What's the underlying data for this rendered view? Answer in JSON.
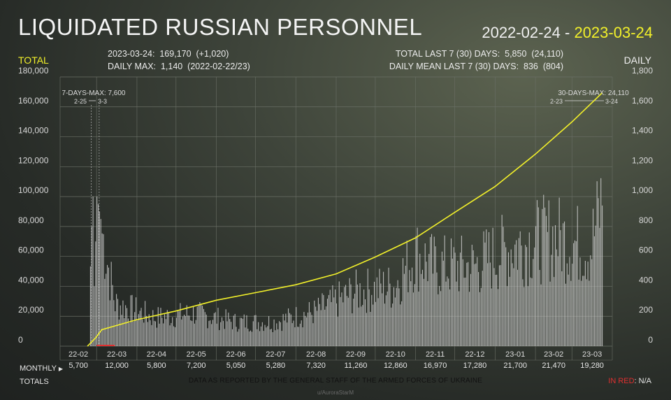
{
  "header": {
    "title": "LIQUIDATED RUSSIAN PERSONNEL",
    "date_start": "2022-02-24",
    "date_sep": " - ",
    "date_end": "2023-03-24",
    "total_label": "TOTAL",
    "daily_label": "DAILY"
  },
  "stats": {
    "left_line1": "2023-03-24:  169,170  (+1,020)",
    "left_line2": "DAILY MAX:  1,140  (2022-02-22/23)",
    "right_line1": "TOTAL LAST 7 (30) DAYS:  5,850  (24,110)",
    "right_line2": "DAILY MEAN LAST 7 (30) DAYS:  836  (804)"
  },
  "annotations": {
    "max7_label": "7-DAYS-MAX: 7,600",
    "max7_from": "2-25",
    "max7_to": "3-3",
    "max30_label": "30-DAYS-MAX: 24,110",
    "max30_from": "2-23",
    "max30_to": "3-24"
  },
  "footer": {
    "monthly_label": "MONTHLY",
    "totals_label": "TOTALS",
    "source": "DATA AS REPORTED BY THE GENERAL STAFF OF THE ARMED FORCES OF UKRAINE",
    "credit": "u/AuroraStarM",
    "pct_key": "IN RED",
    "pct_value": ": N/A"
  },
  "colors": {
    "cumulative_line": "#f2f02a",
    "bars": "#d4d4d4",
    "gridlines": "#6a6f66",
    "red_marker": "#e03030"
  },
  "chart_data": {
    "type": "bar",
    "title": "LIQUIDATED RUSSIAN PERSONNEL",
    "left_axis": {
      "label": "TOTAL",
      "ylim": [
        0,
        180000
      ],
      "ticks": [
        "0",
        "20,000",
        "40,000",
        "60,000",
        "80,000",
        "100,000",
        "120,000",
        "140,000",
        "160,000",
        "180,000"
      ]
    },
    "right_axis": {
      "label": "DAILY",
      "ylim": [
        0,
        1800
      ],
      "ticks": [
        "0",
        "200",
        "400",
        "600",
        "800",
        "1,000",
        "1,200",
        "1,400",
        "1,600",
        "1,800"
      ]
    },
    "grid": true,
    "months": [
      "22-02",
      "22-03",
      "22-04",
      "22-05",
      "22-06",
      "22-07",
      "22-08",
      "22-09",
      "22-10",
      "22-11",
      "22-12",
      "23-01",
      "23-02",
      "23-03"
    ],
    "monthly_totals": [
      "5,700",
      "12,000",
      "5,800",
      "7,200",
      "5,050",
      "5,280",
      "7,320",
      "11,260",
      "12,860",
      "16,970",
      "17,280",
      "21,700",
      "21,470",
      "19,280"
    ],
    "series": [
      {
        "name": "Cumulative total",
        "axis": "left",
        "points": [
          [
            "2022-02-22",
            0
          ],
          [
            "2022-02-28",
            5300
          ],
          [
            "2022-03-05",
            11000
          ],
          [
            "2022-03-15",
            13500
          ],
          [
            "2022-04-01",
            17700
          ],
          [
            "2022-05-01",
            23500
          ],
          [
            "2022-06-01",
            30700
          ],
          [
            "2022-07-01",
            35750
          ],
          [
            "2022-08-01",
            41030
          ],
          [
            "2022-09-01",
            48350
          ],
          [
            "2022-10-01",
            59610
          ],
          [
            "2022-11-01",
            72470
          ],
          [
            "2022-12-01",
            89440
          ],
          [
            "2023-01-01",
            106720
          ],
          [
            "2023-02-01",
            128420
          ],
          [
            "2023-03-01",
            149890
          ],
          [
            "2023-03-24",
            169170
          ]
        ]
      },
      {
        "name": "Daily",
        "axis": "right",
        "points": [
          [
            "2022-02-22",
            0
          ],
          [
            "2022-02-25",
            800
          ],
          [
            "2022-02-26",
            1000
          ],
          [
            "2022-02-27",
            400
          ],
          [
            "2022-03-01",
            1000
          ],
          [
            "2022-03-15",
            300
          ],
          [
            "2022-04-15",
            200
          ],
          [
            "2022-05-15",
            230
          ],
          [
            "2022-06-15",
            170
          ],
          [
            "2022-07-15",
            170
          ],
          [
            "2022-08-15",
            240
          ],
          [
            "2022-09-15",
            380
          ],
          [
            "2022-10-15",
            420
          ],
          [
            "2022-11-01",
            650
          ],
          [
            "2022-11-15",
            560
          ],
          [
            "2022-12-15",
            560
          ],
          [
            "2023-01-15",
            700
          ],
          [
            "2023-02-15",
            770
          ],
          [
            "2023-03-15",
            690
          ],
          [
            "2023-03-24",
            1020
          ]
        ]
      }
    ]
  }
}
